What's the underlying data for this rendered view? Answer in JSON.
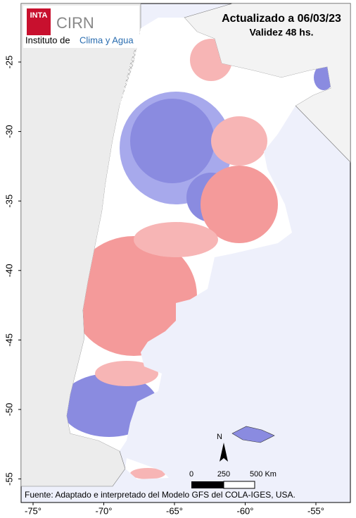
{
  "header": {
    "logo_inta": "INTA",
    "logo_cirn": "CIRN",
    "institute_prefix": "Instituto de",
    "institute_name": "Clima y Agua",
    "title": "Actualizado a 06/03/23",
    "subtitle": "Validez 48 hs."
  },
  "axes": {
    "y_ticks": [
      "-25",
      "-30",
      "-35",
      "-40",
      "-45",
      "-50",
      "-55"
    ],
    "x_ticks": [
      "-75°",
      "-70°",
      "-65°",
      "-60°",
      "-55°"
    ]
  },
  "scale_bar": {
    "labels": [
      "0",
      "250",
      "500 Km"
    ]
  },
  "north_arrow": "N",
  "footer": "Fuente: Adaptado e interpretado del Modelo GFS del COLA-IGES, USA."
}
